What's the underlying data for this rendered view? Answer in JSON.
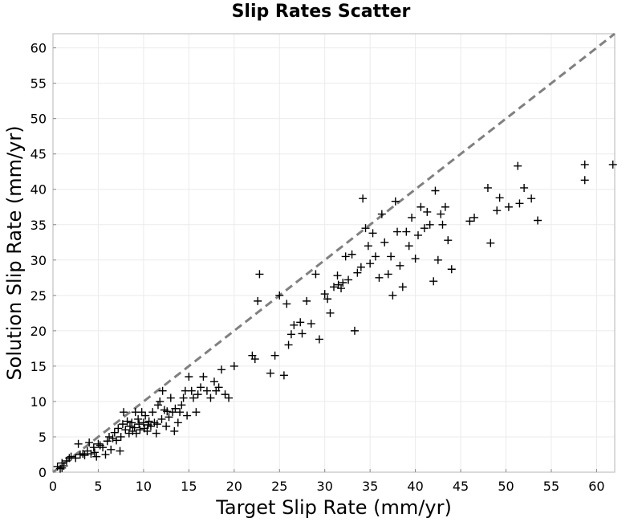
{
  "chart_data": {
    "type": "scatter",
    "title": "Slip Rates Scatter",
    "xlabel": "Target Slip Rate (mm/yr)",
    "ylabel": "Solution Slip Rate (mm/yr)",
    "xlim": [
      0,
      62
    ],
    "ylim": [
      0,
      62
    ],
    "xticks": [
      0,
      5,
      10,
      15,
      20,
      25,
      30,
      35,
      40,
      45,
      50,
      55,
      60
    ],
    "yticks": [
      0,
      5,
      10,
      15,
      20,
      25,
      30,
      35,
      40,
      45,
      50,
      55,
      60
    ],
    "grid": true,
    "legend": "none",
    "reference_line": {
      "style": "dashed",
      "color": "#808080",
      "from": [
        0,
        0
      ],
      "to": [
        62,
        62
      ]
    },
    "marker": {
      "shape": "plus",
      "color": "#000000"
    },
    "points": [
      [
        0.5,
        0.8
      ],
      [
        0.8,
        0.5
      ],
      [
        1.0,
        1.3
      ],
      [
        1.2,
        0.9
      ],
      [
        1.5,
        1.6
      ],
      [
        1.0,
        0.6
      ],
      [
        1.8,
        2.0
      ],
      [
        2.0,
        2.2
      ],
      [
        2.5,
        2.0
      ],
      [
        2.8,
        4.0
      ],
      [
        3.0,
        2.5
      ],
      [
        3.3,
        2.6
      ],
      [
        3.5,
        2.4
      ],
      [
        3.8,
        3.0
      ],
      [
        4.0,
        4.2
      ],
      [
        4.2,
        2.6
      ],
      [
        4.5,
        3.5
      ],
      [
        4.6,
        2.8
      ],
      [
        4.8,
        2.2
      ],
      [
        5.0,
        4.0
      ],
      [
        5.2,
        3.8
      ],
      [
        5.5,
        3.5
      ],
      [
        5.8,
        2.5
      ],
      [
        6.0,
        4.4
      ],
      [
        6.2,
        5.0
      ],
      [
        6.4,
        3.2
      ],
      [
        6.6,
        4.8
      ],
      [
        6.8,
        5.6
      ],
      [
        7.0,
        4.5
      ],
      [
        7.2,
        6.2
      ],
      [
        7.4,
        3.0
      ],
      [
        7.5,
        5.0
      ],
      [
        7.7,
        6.8
      ],
      [
        7.8,
        8.5
      ],
      [
        8.0,
        6.0
      ],
      [
        8.2,
        7.2
      ],
      [
        8.4,
        5.5
      ],
      [
        8.5,
        6.5
      ],
      [
        8.7,
        7.0
      ],
      [
        8.8,
        5.8
      ],
      [
        9.0,
        6.3
      ],
      [
        9.1,
        8.5
      ],
      [
        9.2,
        5.5
      ],
      [
        9.4,
        7.5
      ],
      [
        9.5,
        6.8
      ],
      [
        9.6,
        6.0
      ],
      [
        9.8,
        8.5
      ],
      [
        10.0,
        7.0
      ],
      [
        10.1,
        6.2
      ],
      [
        10.2,
        8.0
      ],
      [
        10.4,
        5.8
      ],
      [
        10.5,
        6.7
      ],
      [
        10.6,
        7.2
      ],
      [
        10.8,
        6.5
      ],
      [
        11.0,
        8.5
      ],
      [
        11.2,
        7.0
      ],
      [
        11.4,
        5.5
      ],
      [
        11.5,
        6.8
      ],
      [
        11.6,
        9.5
      ],
      [
        11.8,
        10.0
      ],
      [
        12.0,
        7.5
      ],
      [
        12.1,
        11.5
      ],
      [
        12.3,
        8.8
      ],
      [
        12.5,
        6.5
      ],
      [
        12.6,
        8.6
      ],
      [
        12.8,
        7.8
      ],
      [
        13.0,
        10.5
      ],
      [
        13.2,
        8.5
      ],
      [
        13.4,
        5.8
      ],
      [
        13.5,
        9.0
      ],
      [
        13.8,
        7.0
      ],
      [
        14.0,
        8.5
      ],
      [
        14.2,
        9.5
      ],
      [
        14.4,
        10.5
      ],
      [
        14.6,
        11.5
      ],
      [
        14.8,
        8.0
      ],
      [
        15.0,
        13.5
      ],
      [
        15.3,
        11.5
      ],
      [
        15.5,
        10.5
      ],
      [
        15.8,
        8.5
      ],
      [
        16.0,
        11.0
      ],
      [
        16.3,
        12.0
      ],
      [
        16.6,
        13.5
      ],
      [
        17.0,
        11.5
      ],
      [
        17.4,
        10.5
      ],
      [
        17.8,
        12.8
      ],
      [
        18.0,
        11.5
      ],
      [
        18.3,
        12.0
      ],
      [
        18.6,
        14.5
      ],
      [
        19.0,
        11.0
      ],
      [
        19.4,
        10.5
      ],
      [
        20.0,
        15.0
      ],
      [
        22.0,
        16.5
      ],
      [
        22.3,
        16.0
      ],
      [
        22.6,
        24.2
      ],
      [
        22.8,
        28.0
      ],
      [
        24.0,
        14.0
      ],
      [
        24.5,
        16.5
      ],
      [
        25.0,
        25.0
      ],
      [
        25.5,
        13.7
      ],
      [
        25.8,
        23.8
      ],
      [
        26.0,
        18.0
      ],
      [
        26.3,
        19.5
      ],
      [
        26.6,
        20.8
      ],
      [
        27.3,
        21.2
      ],
      [
        27.5,
        19.6
      ],
      [
        28.0,
        24.2
      ],
      [
        28.5,
        21.0
      ],
      [
        29.0,
        28.0
      ],
      [
        29.4,
        18.8
      ],
      [
        30.0,
        25.2
      ],
      [
        30.3,
        24.5
      ],
      [
        30.6,
        22.5
      ],
      [
        31.0,
        26.2
      ],
      [
        31.4,
        27.8
      ],
      [
        31.5,
        26.5
      ],
      [
        31.8,
        26.0
      ],
      [
        32.0,
        26.8
      ],
      [
        32.3,
        30.5
      ],
      [
        32.6,
        27.2
      ],
      [
        33.0,
        30.8
      ],
      [
        33.3,
        20.0
      ],
      [
        33.6,
        28.2
      ],
      [
        34.0,
        29.0
      ],
      [
        34.2,
        38.7
      ],
      [
        34.5,
        34.5
      ],
      [
        34.8,
        32.0
      ],
      [
        35.0,
        29.5
      ],
      [
        35.3,
        33.8
      ],
      [
        35.6,
        30.5
      ],
      [
        36.0,
        27.5
      ],
      [
        36.3,
        36.5
      ],
      [
        36.6,
        32.5
      ],
      [
        37.0,
        28.0
      ],
      [
        37.3,
        30.5
      ],
      [
        37.5,
        25.0
      ],
      [
        37.8,
        38.3
      ],
      [
        38.0,
        34.0
      ],
      [
        38.3,
        29.2
      ],
      [
        38.6,
        26.2
      ],
      [
        39.0,
        34.0
      ],
      [
        39.3,
        32.0
      ],
      [
        39.6,
        36.0
      ],
      [
        40.0,
        30.2
      ],
      [
        40.3,
        33.5
      ],
      [
        40.6,
        37.5
      ],
      [
        41.0,
        34.5
      ],
      [
        41.3,
        36.8
      ],
      [
        41.6,
        35.0
      ],
      [
        42.0,
        27.0
      ],
      [
        42.2,
        39.8
      ],
      [
        42.5,
        30.0
      ],
      [
        42.8,
        36.5
      ],
      [
        43.0,
        35.0
      ],
      [
        43.3,
        37.5
      ],
      [
        43.6,
        32.8
      ],
      [
        44.0,
        28.7
      ],
      [
        46.0,
        35.5
      ],
      [
        46.5,
        36.0
      ],
      [
        48.0,
        40.2
      ],
      [
        48.3,
        32.4
      ],
      [
        49.0,
        37.0
      ],
      [
        49.3,
        38.8
      ],
      [
        50.3,
        37.5
      ],
      [
        51.3,
        43.3
      ],
      [
        51.5,
        38.0
      ],
      [
        52.0,
        40.2
      ],
      [
        52.8,
        38.7
      ],
      [
        53.5,
        35.6
      ],
      [
        58.7,
        43.5
      ],
      [
        58.7,
        41.3
      ],
      [
        61.8,
        43.5
      ]
    ]
  }
}
